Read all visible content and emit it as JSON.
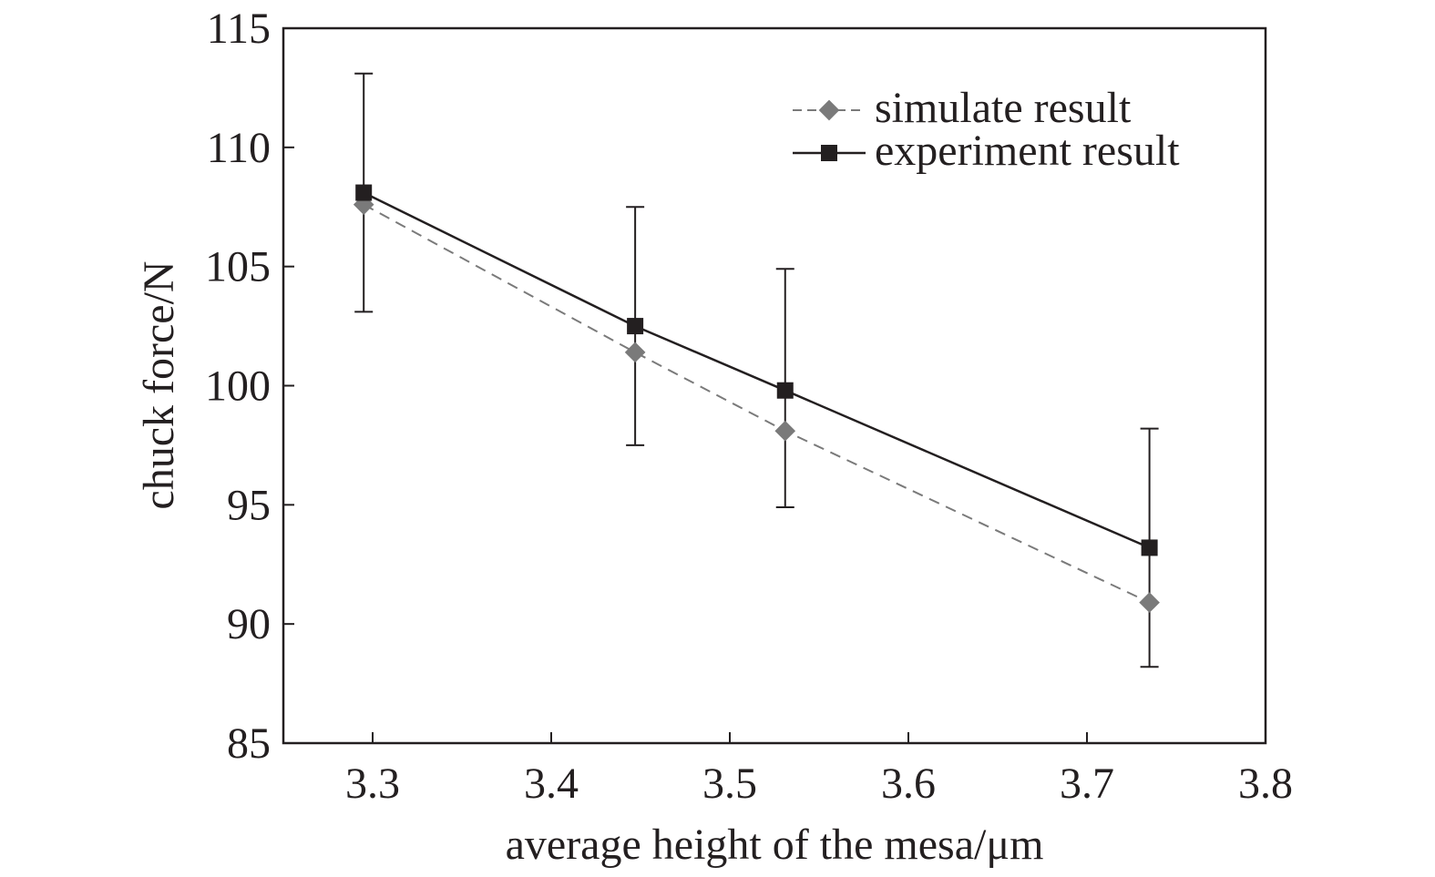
{
  "chart_data": {
    "type": "line",
    "title": "",
    "xlabel": "average height of the mesa/μm",
    "ylabel": "chuck force/N",
    "xlim": [
      3.25,
      3.8
    ],
    "ylim": [
      85,
      115
    ],
    "xticks": [
      3.3,
      3.4,
      3.5,
      3.6,
      3.7,
      3.8
    ],
    "xtick_labels": [
      "3.3",
      "3.4",
      "3.5",
      "3.6",
      "3.7",
      "3.8"
    ],
    "yticks": [
      85,
      90,
      95,
      100,
      105,
      110,
      115
    ],
    "ytick_labels": [
      "85",
      "90",
      "95",
      "100",
      "105",
      "110",
      "115"
    ],
    "grid": false,
    "legend_position": "top-right",
    "series": [
      {
        "name": "simulate result",
        "color": "#7a7a7a",
        "marker": "diamond",
        "line_style": "dashed",
        "x": [
          3.295,
          3.447,
          3.531,
          3.735
        ],
        "y": [
          107.6,
          101.4,
          98.1,
          90.9
        ]
      },
      {
        "name": "experiment result",
        "color": "#231f20",
        "marker": "square",
        "line_style": "solid",
        "x": [
          3.295,
          3.447,
          3.531,
          3.735
        ],
        "y": [
          108.1,
          102.5,
          99.8,
          93.2
        ],
        "error_low": [
          103.1,
          97.5,
          94.9,
          88.2
        ],
        "error_high": [
          113.1,
          107.5,
          104.9,
          98.2
        ]
      }
    ]
  }
}
